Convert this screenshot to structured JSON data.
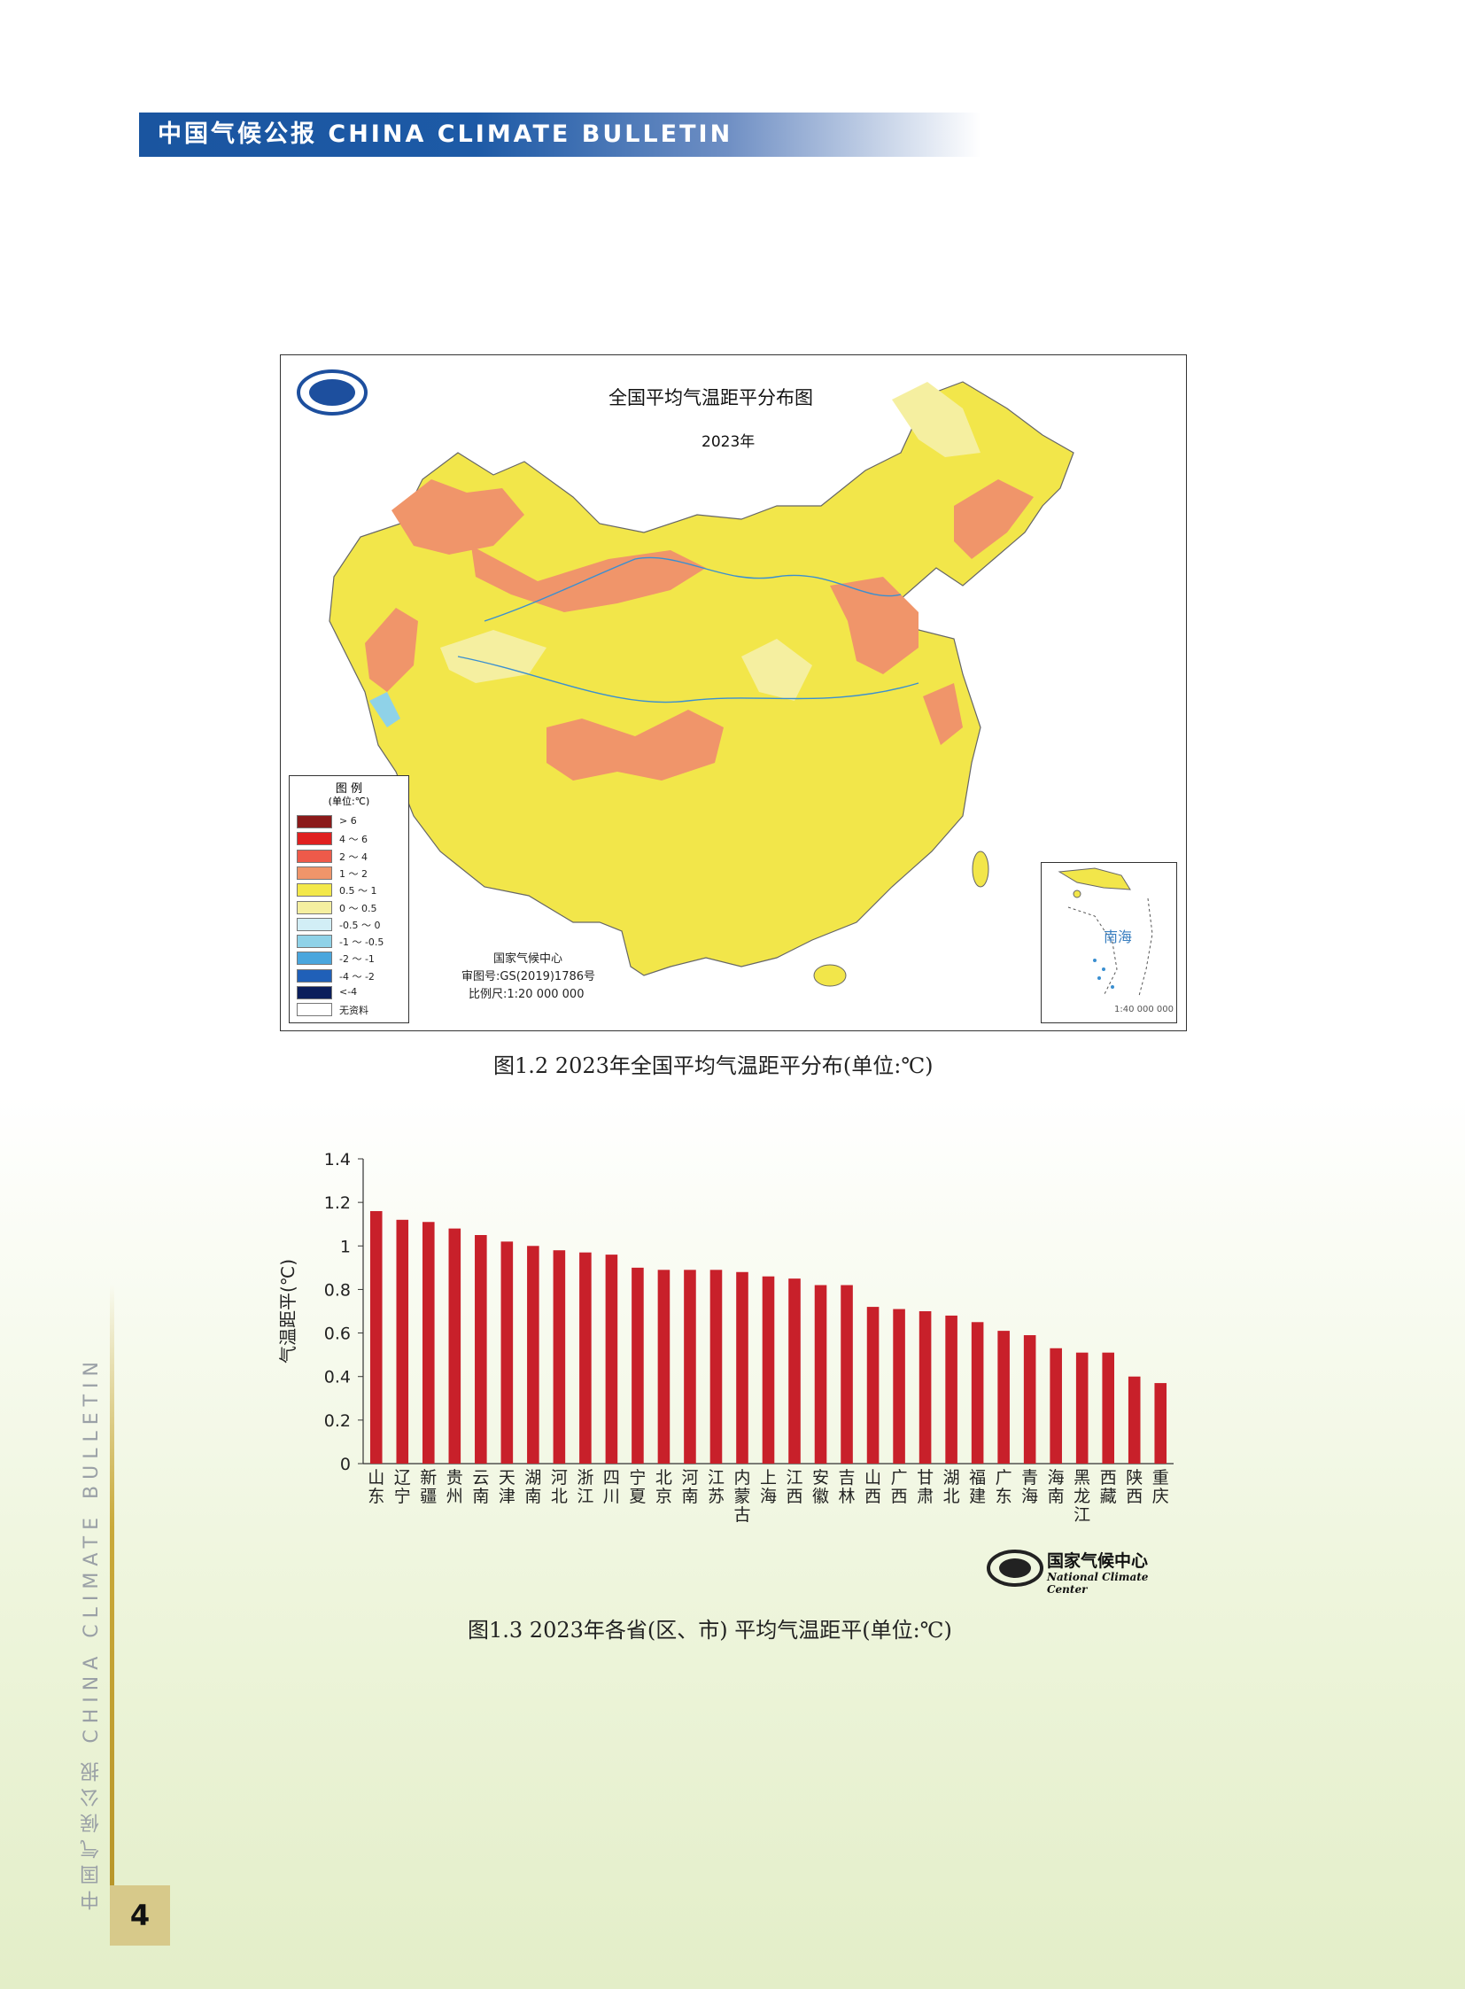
{
  "header": {
    "title": "中国气候公报  CHINA CLIMATE BULLETIN"
  },
  "side_banner": {
    "text": "中国气候公报  CHINA CLIMATE BULLETIN"
  },
  "page_number": "4",
  "map": {
    "title": "全国平均气温距平分布图",
    "year": "2023年",
    "legend_title": "图 例",
    "legend_unit": "(单位:℃)",
    "legend": [
      {
        "label": "> 6",
        "color": "#8b1a1a"
      },
      {
        "label": "4 ～ 6",
        "color": "#e02020"
      },
      {
        "label": "2 ～ 4",
        "color": "#ee5a4a"
      },
      {
        "label": "1 ～ 2",
        "color": "#f0956a"
      },
      {
        "label": "0.5 ～ 1",
        "color": "#f3e84a"
      },
      {
        "label": "0 ～ 0.5",
        "color": "#f5efa0"
      },
      {
        "label": "-0.5 ～ 0",
        "color": "#d2eef6"
      },
      {
        "label": "-1 ～ -0.5",
        "color": "#8fd2e8"
      },
      {
        "label": "-2 ～ -1",
        "color": "#4aa6dd"
      },
      {
        "label": "-4 ～ -2",
        "color": "#2060b8"
      },
      {
        "label": "<-4",
        "color": "#0b1e5c"
      },
      {
        "label": "无资料",
        "color": "#ffffff"
      }
    ],
    "credit_org": "国家气候中心",
    "credit_approval": "审图号:GS(2019)1786号",
    "credit_scale": "比例尺:1:20 000 000",
    "inset_label": "南海",
    "inset_scale": "1:40 000 000",
    "caption": "图1.2  2023年全国平均气温距平分布(单位:℃)"
  },
  "chart_data": {
    "type": "bar",
    "title": "",
    "ylabel": "气温距平(℃)",
    "xlabel": "",
    "ylim": [
      0,
      1.4
    ],
    "yticks": [
      "0",
      "0.2",
      "0.4",
      "0.6",
      "0.8",
      "1",
      "1.2",
      "1.4"
    ],
    "categories": [
      "山东",
      "辽宁",
      "新疆",
      "贵州",
      "云南",
      "天津",
      "湖南",
      "河北",
      "浙江",
      "四川",
      "宁夏",
      "北京",
      "河南",
      "江苏",
      "内蒙古",
      "上海",
      "江西",
      "安徽",
      "吉林",
      "山西",
      "广西",
      "甘肃",
      "湖北",
      "福建",
      "广东",
      "青海",
      "海南",
      "黑龙江",
      "西藏",
      "陕西",
      "重庆"
    ],
    "values": [
      1.16,
      1.12,
      1.11,
      1.08,
      1.05,
      1.02,
      1.0,
      0.98,
      0.97,
      0.96,
      0.9,
      0.89,
      0.89,
      0.89,
      0.88,
      0.86,
      0.85,
      0.82,
      0.82,
      0.72,
      0.71,
      0.7,
      0.68,
      0.65,
      0.61,
      0.59,
      0.53,
      0.51,
      0.51,
      0.4,
      0.37
    ],
    "bar_color": "#c8202a",
    "grid": false
  },
  "chart_logo": {
    "cn": "国家气候中心",
    "en": "National Climate Center"
  },
  "chart_caption": "图1.3  2023年各省(区、市) 平均气温距平(单位:℃)"
}
